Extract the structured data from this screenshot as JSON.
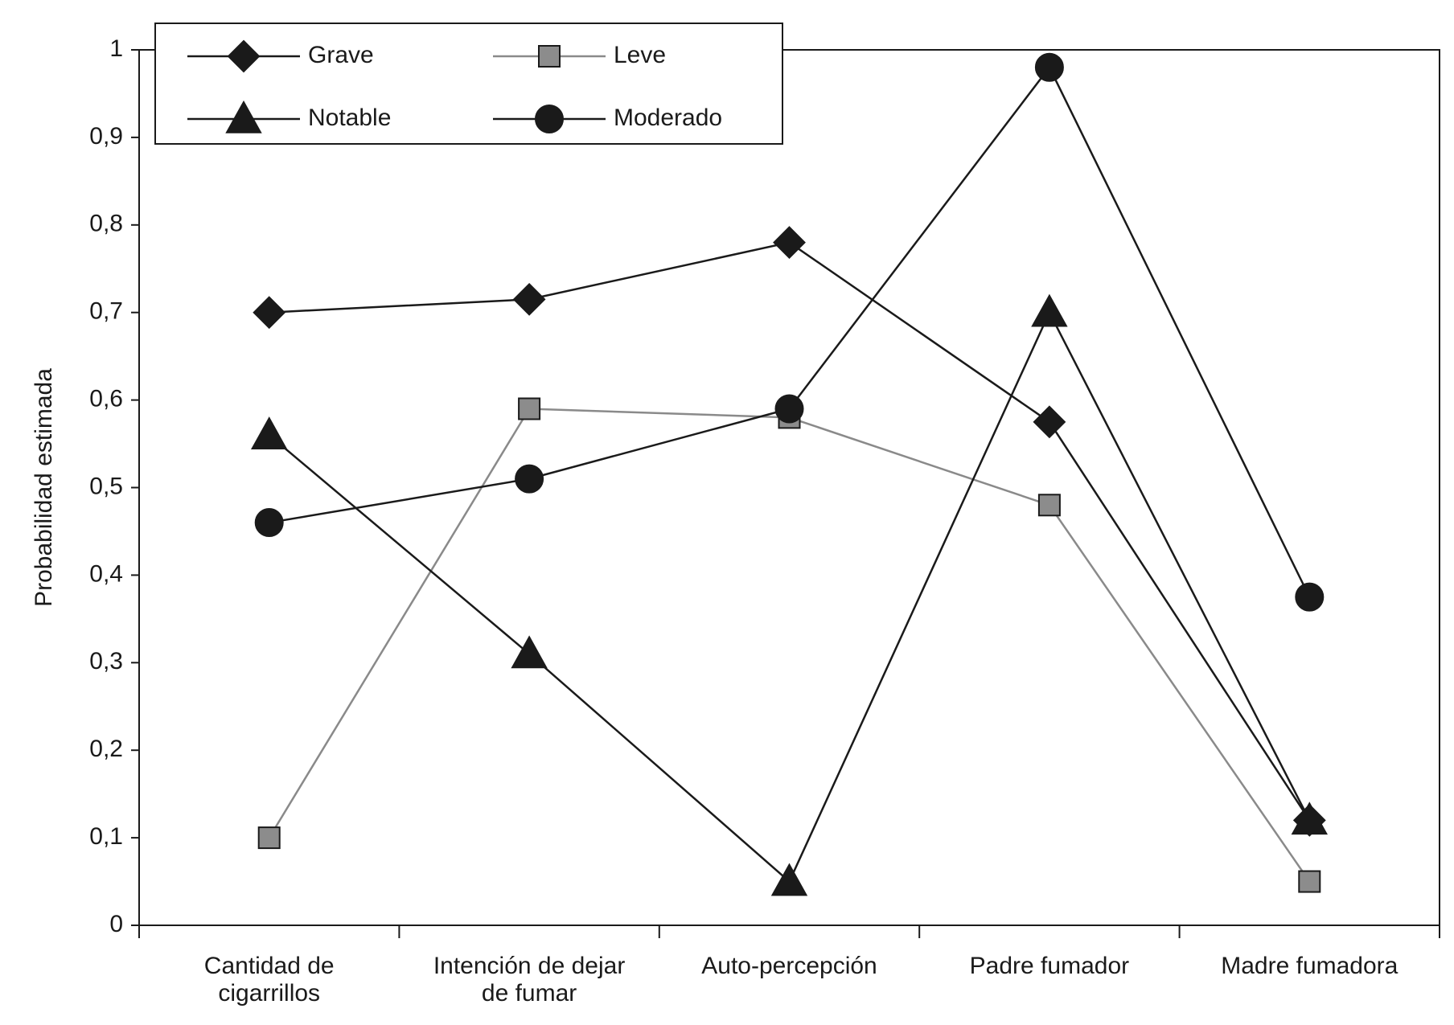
{
  "chart_data": {
    "type": "line",
    "categories": [
      [
        "Cantidad de",
        "cigarrillos"
      ],
      [
        "Intención de dejar",
        "de fumar"
      ],
      [
        "Auto-percepción"
      ],
      [
        "Padre fumador"
      ],
      [
        "Madre fumadora"
      ]
    ],
    "ylabel": "Probabilidad estimada",
    "xlabel": "",
    "title": "",
    "ylim": [
      0,
      1
    ],
    "yticks": [
      "0",
      "0,1",
      "0,2",
      "0,3",
      "0,4",
      "0,5",
      "0,6",
      "0,7",
      "0,8",
      "0,9",
      "1"
    ],
    "legend_position": "top-left",
    "series": [
      {
        "name": "Grave",
        "marker": "diamond",
        "color": "#1a1a1a",
        "values": [
          0.7,
          0.715,
          0.78,
          0.575,
          0.12
        ]
      },
      {
        "name": "Leve",
        "marker": "square",
        "color": "#8a8a8a",
        "values": [
          0.1,
          0.59,
          0.58,
          0.48,
          0.05
        ]
      },
      {
        "name": "Notable",
        "marker": "triangle",
        "color": "#1a1a1a",
        "values": [
          0.56,
          0.31,
          0.05,
          0.7,
          0.12
        ]
      },
      {
        "name": "Moderado",
        "marker": "circle",
        "color": "#1a1a1a",
        "values": [
          0.46,
          0.51,
          0.59,
          0.98,
          0.375
        ]
      }
    ]
  }
}
